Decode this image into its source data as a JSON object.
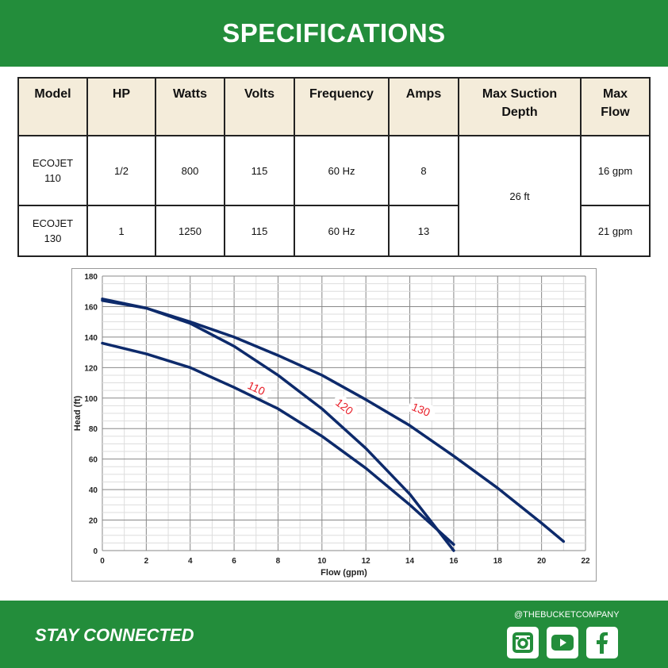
{
  "header": {
    "title": "SPECIFICATIONS"
  },
  "table": {
    "columns": [
      "Model",
      "HP",
      "Watts",
      "Volts",
      "Frequency",
      "Amps",
      "Max Suction Depth",
      "Max Flow"
    ],
    "rows": [
      {
        "model": "ECOJET 110",
        "hp": "1/2",
        "watts": "800",
        "volts": "115",
        "frequency": "60 Hz",
        "amps": "8",
        "max_flow": "16 gpm"
      },
      {
        "model": "ECOJET 130",
        "hp": "1",
        "watts": "1250",
        "volts": "115",
        "frequency": "60 Hz",
        "amps": "13",
        "max_flow": "21 gpm"
      }
    ],
    "max_suction_depth": "26 ft"
  },
  "chart_data": {
    "type": "line",
    "xlabel": "Flow (gpm)",
    "ylabel": "Head (ft)",
    "xlim": [
      0,
      22
    ],
    "ylim": [
      0,
      180
    ],
    "xticks": [
      0,
      2,
      4,
      6,
      8,
      10,
      12,
      14,
      16,
      18,
      20,
      22
    ],
    "yticks": [
      0,
      20,
      40,
      60,
      80,
      100,
      120,
      140,
      160,
      180
    ],
    "grid": true,
    "line_color": "#0d2a6b",
    "label_color": "#e8202a",
    "series": [
      {
        "name": "110",
        "x": [
          0,
          2,
          4,
          6,
          8,
          10,
          12,
          14,
          16
        ],
        "y": [
          136,
          129,
          120,
          107,
          93,
          75,
          54,
          30,
          4
        ]
      },
      {
        "name": "120",
        "x": [
          0,
          2,
          4,
          6,
          8,
          10,
          12,
          14,
          16
        ],
        "y": [
          165,
          159,
          149,
          134,
          115,
          93,
          67,
          37,
          0
        ]
      },
      {
        "name": "130",
        "x": [
          0,
          2,
          4,
          6,
          8,
          10,
          12,
          14,
          16,
          18,
          20,
          21
        ],
        "y": [
          164,
          159,
          150,
          140,
          128,
          115,
          99,
          82,
          62,
          41,
          18,
          6
        ]
      }
    ]
  },
  "footer": {
    "tagline": "STAY CONNECTED",
    "handle": "@THEBUCKETCOMPANY",
    "social": [
      "instagram-icon",
      "youtube-icon",
      "facebook-icon"
    ],
    "brand_color": "#238d3b"
  }
}
